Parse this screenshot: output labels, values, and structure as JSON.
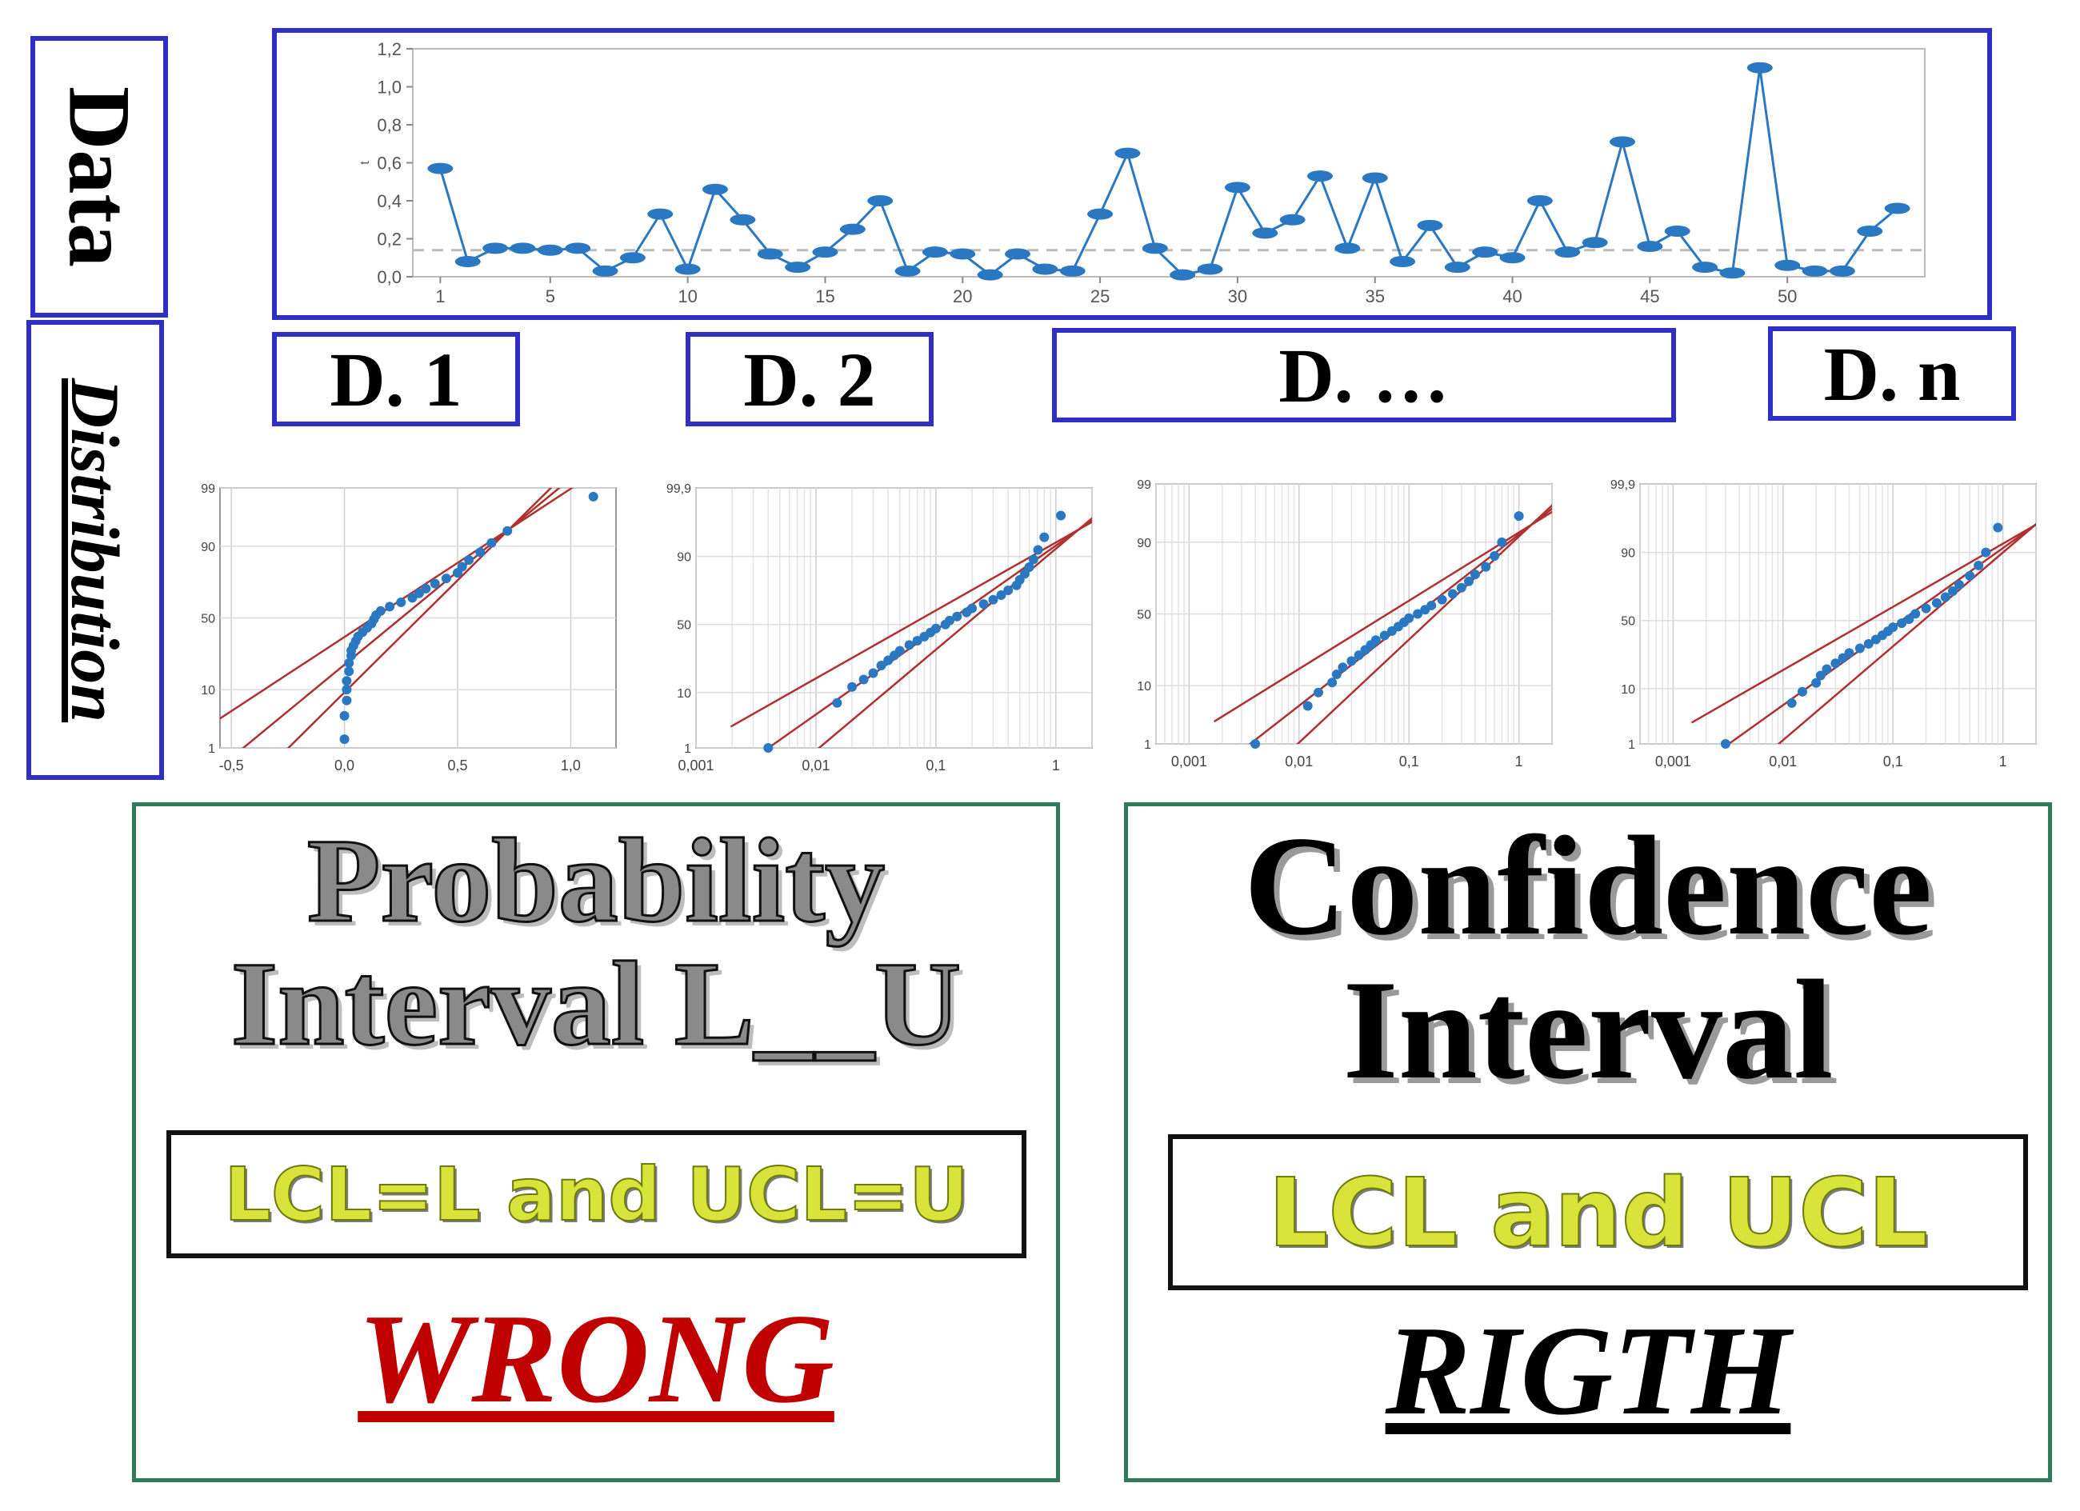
{
  "labels": {
    "data": "Data",
    "distribution": "Distribution"
  },
  "distribution_tags": [
    "D. 1",
    "D. 2",
    "D. …",
    "D. n"
  ],
  "left_panel": {
    "title_line1": "Probability",
    "title_line2": "Interval L__U",
    "box_text": "LCL=L and UCL=U",
    "verdict": "WRONG"
  },
  "right_panel": {
    "title_line1": "Confidence",
    "title_line2": "Interval",
    "box_text": "LCL and UCL",
    "verdict": "RIGTH"
  },
  "colors": {
    "frame_blue": "#2f2fc8",
    "frame_green": "#2e7a5a",
    "series_blue": "#2a78c2",
    "fit_red": "#b03030",
    "wrong_red": "#c00000"
  },
  "chart_data": [
    {
      "type": "line",
      "name": "time-series",
      "ylabel": "t",
      "ylim": [
        0,
        1.2
      ],
      "yticks": [
        "0,0",
        "0,2",
        "0,4",
        "0,6",
        "0,8",
        "1,0",
        "1,2"
      ],
      "xticks": [
        "1",
        "5",
        "10",
        "15",
        "20",
        "25",
        "30",
        "35",
        "40",
        "45",
        "50"
      ],
      "x": [
        1,
        2,
        3,
        4,
        5,
        6,
        7,
        8,
        9,
        10,
        11,
        12,
        13,
        14,
        15,
        16,
        17,
        18,
        19,
        20,
        21,
        22,
        23,
        24,
        25,
        26,
        27,
        28,
        29,
        30,
        31,
        32,
        33,
        34,
        35,
        36,
        37,
        38,
        39,
        40,
        41,
        42,
        43,
        44,
        45,
        46,
        47,
        48,
        49,
        50,
        51,
        52,
        53,
        54
      ],
      "values": [
        0.57,
        0.08,
        0.15,
        0.15,
        0.14,
        0.15,
        0.03,
        0.1,
        0.33,
        0.04,
        0.46,
        0.3,
        0.12,
        0.05,
        0.13,
        0.25,
        0.4,
        0.03,
        0.13,
        0.12,
        0.01,
        0.12,
        0.04,
        0.03,
        0.33,
        0.65,
        0.15,
        0.01,
        0.04,
        0.47,
        0.23,
        0.3,
        0.53,
        0.15,
        0.52,
        0.08,
        0.27,
        0.05,
        0.13,
        0.1,
        0.4,
        0.13,
        0.18,
        0.71,
        0.16,
        0.24,
        0.05,
        0.02,
        1.1,
        0.06,
        0.03,
        0.03,
        0.24,
        0.36
      ],
      "reference_line": 0.14
    },
    {
      "type": "scatter",
      "name": "probability-plot-1",
      "xscale": "linear",
      "xticks": [
        "-0,5",
        "0,0",
        "0,5",
        "1,0"
      ],
      "yticks": [
        "1",
        "10",
        "50",
        "90",
        "99"
      ],
      "xlim": [
        -0.55,
        1.2
      ],
      "x": [
        0.0,
        0.0,
        0.01,
        0.01,
        0.01,
        0.02,
        0.02,
        0.03,
        0.03,
        0.04,
        0.05,
        0.06,
        0.08,
        0.1,
        0.12,
        0.13,
        0.14,
        0.16,
        0.2,
        0.25,
        0.3,
        0.33,
        0.36,
        0.4,
        0.45,
        0.5,
        0.52,
        0.55,
        0.6,
        0.65,
        0.72,
        1.1
      ],
      "p": [
        1.5,
        4,
        7,
        10,
        13,
        17,
        21,
        25,
        28,
        31,
        34,
        37,
        40,
        43,
        46,
        49,
        52,
        55,
        58,
        61,
        64,
        67,
        70,
        73,
        76,
        79,
        82,
        85,
        88,
        91,
        94,
        98.5
      ]
    },
    {
      "type": "scatter",
      "name": "probability-plot-2",
      "xscale": "log",
      "xticks": [
        "0,001",
        "0,01",
        "0,1",
        "1"
      ],
      "yticks": [
        "1",
        "10",
        "50",
        "90",
        "99,9"
      ],
      "xlim": [
        0.001,
        2
      ],
      "x": [
        0.004,
        0.015,
        0.02,
        0.025,
        0.03,
        0.035,
        0.04,
        0.045,
        0.05,
        0.06,
        0.07,
        0.08,
        0.09,
        0.1,
        0.12,
        0.13,
        0.15,
        0.18,
        0.2,
        0.25,
        0.3,
        0.35,
        0.4,
        0.47,
        0.5,
        0.55,
        0.6,
        0.65,
        0.71,
        0.8,
        1.1
      ],
      "p": [
        1,
        7,
        12,
        15,
        18,
        22,
        25,
        28,
        31,
        35,
        38,
        41,
        44,
        47,
        50,
        53,
        56,
        59,
        62,
        65,
        68,
        71,
        74,
        77,
        80,
        83,
        86,
        89,
        92,
        95,
        98
      ]
    },
    {
      "type": "scatter",
      "name": "probability-plot-3",
      "xscale": "log",
      "xticks": [
        "0,001",
        "0,01",
        "0,1",
        "1"
      ],
      "yticks": [
        "1",
        "10",
        "50",
        "90",
        "99"
      ],
      "xlim": [
        0.0005,
        2
      ],
      "x": [
        0.004,
        0.012,
        0.015,
        0.02,
        0.022,
        0.025,
        0.03,
        0.035,
        0.04,
        0.045,
        0.05,
        0.06,
        0.07,
        0.08,
        0.09,
        0.1,
        0.12,
        0.14,
        0.16,
        0.2,
        0.25,
        0.3,
        0.35,
        0.4,
        0.5,
        0.6,
        0.7,
        1.0
      ],
      "p": [
        1,
        5,
        8,
        11,
        14,
        17,
        20,
        23,
        26,
        29,
        32,
        35,
        38,
        41,
        44,
        47,
        50,
        53,
        56,
        60,
        64,
        68,
        72,
        76,
        80,
        85,
        90,
        96
      ]
    },
    {
      "type": "scatter",
      "name": "probability-plot-n",
      "xscale": "log",
      "xticks": [
        "0,001",
        "0,01",
        "0,1",
        "1"
      ],
      "yticks": [
        "1",
        "10",
        "50",
        "90",
        "99,9"
      ],
      "xlim": [
        0.0005,
        2
      ],
      "x": [
        0.003,
        0.012,
        0.015,
        0.02,
        0.022,
        0.025,
        0.03,
        0.035,
        0.04,
        0.05,
        0.06,
        0.07,
        0.08,
        0.09,
        0.1,
        0.12,
        0.14,
        0.16,
        0.2,
        0.25,
        0.3,
        0.35,
        0.4,
        0.5,
        0.6,
        0.7,
        0.9
      ],
      "p": [
        1,
        6,
        9,
        12,
        15,
        18,
        21,
        24,
        27,
        30,
        33,
        36,
        39,
        42,
        45,
        48,
        51,
        55,
        59,
        63,
        67,
        71,
        75,
        80,
        85,
        90,
        96
      ]
    }
  ]
}
